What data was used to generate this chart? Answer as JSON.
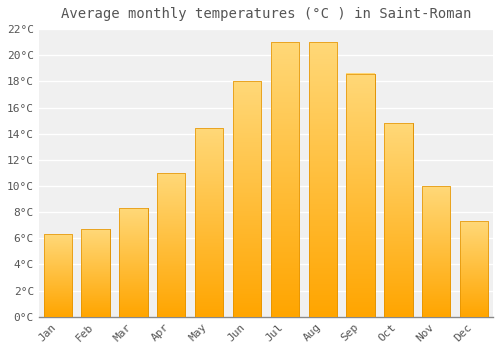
{
  "title": "Average monthly temperatures (°C ) in Saint-Roman",
  "months": [
    "Jan",
    "Feb",
    "Mar",
    "Apr",
    "May",
    "Jun",
    "Jul",
    "Aug",
    "Sep",
    "Oct",
    "Nov",
    "Dec"
  ],
  "values": [
    6.3,
    6.7,
    8.3,
    11.0,
    14.4,
    18.0,
    21.0,
    21.0,
    18.6,
    14.8,
    10.0,
    7.3
  ],
  "bar_color_bottom": "#FFA500",
  "bar_color_top": "#FFD060",
  "bar_edge_color": "#E09000",
  "background_color": "#ffffff",
  "plot_bg_color": "#f0f0f0",
  "grid_color": "#ffffff",
  "text_color": "#555555",
  "ylim": [
    0,
    22
  ],
  "yticks": [
    0,
    2,
    4,
    6,
    8,
    10,
    12,
    14,
    16,
    18,
    20,
    22
  ],
  "title_fontsize": 10,
  "tick_fontsize": 8,
  "bar_width": 0.75
}
